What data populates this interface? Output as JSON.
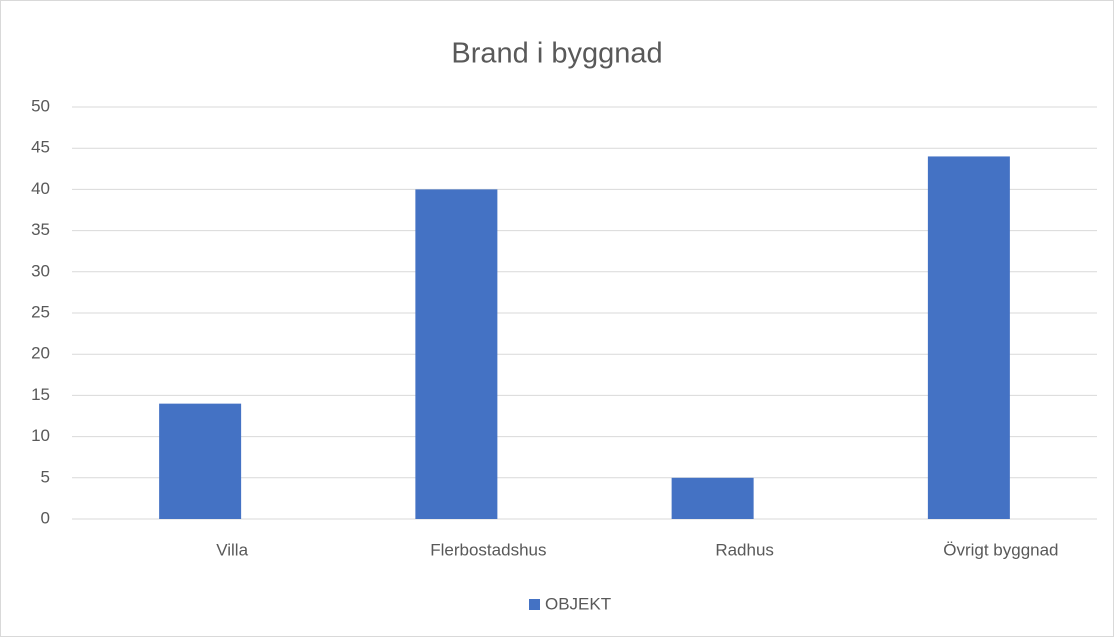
{
  "chart_data": {
    "type": "bar",
    "title": "Brand i byggnad",
    "categories": [
      "Villa",
      "Flerbostadshus",
      "Radhus",
      "Övrigt byggnad"
    ],
    "series": [
      {
        "name": "OBJEKT",
        "color": "#4472c4",
        "values": [
          14,
          40,
          5,
          44
        ]
      }
    ],
    "ylim": [
      0,
      50
    ],
    "yticks": [
      0,
      5,
      10,
      15,
      20,
      25,
      30,
      35,
      40,
      45,
      50
    ],
    "grid": true,
    "legend": "bottom"
  }
}
